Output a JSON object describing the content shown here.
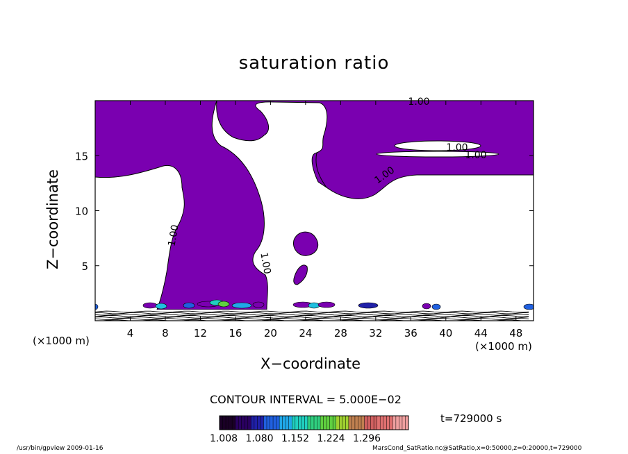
{
  "chart_data": {
    "type": "contour",
    "title": "saturation ratio",
    "xlabel": "X−coordinate",
    "ylabel": "Z−coordinate",
    "x_unit_label": "(×1000 m)",
    "xlim": [
      0,
      50
    ],
    "ylim": [
      0,
      20
    ],
    "xticks": [
      4,
      8,
      12,
      16,
      20,
      24,
      28,
      32,
      36,
      40,
      44,
      48
    ],
    "yticks": [
      5,
      10,
      15
    ],
    "contour_level": 1.0,
    "contour_labels": [
      "1.00",
      "1.00",
      "1.00",
      "1.00",
      "1.00",
      "1.00"
    ],
    "contour_interval_text": "CONTOUR INTERVAL = 5.000E−02",
    "colorbar": {
      "ticks": [
        "1.008",
        "1.080",
        "1.152",
        "1.224",
        "1.296"
      ],
      "colors": [
        "#1a0026",
        "#2a0060",
        "#2020a8",
        "#2060e0",
        "#20a8e8",
        "#20d0c0",
        "#30d080",
        "#60d040",
        "#a0d030",
        "#c08050",
        "#d06060",
        "#e07070",
        "#f0a0a0"
      ]
    },
    "fill_color": "#7a00b0",
    "time_label": "t=729000 s"
  },
  "footer": {
    "left": "/usr/bin/gpview   2009-01-16",
    "right": "MarsCond_SatRatio.nc@SatRatio,x=0:50000,z=0:20000,t=729000"
  }
}
